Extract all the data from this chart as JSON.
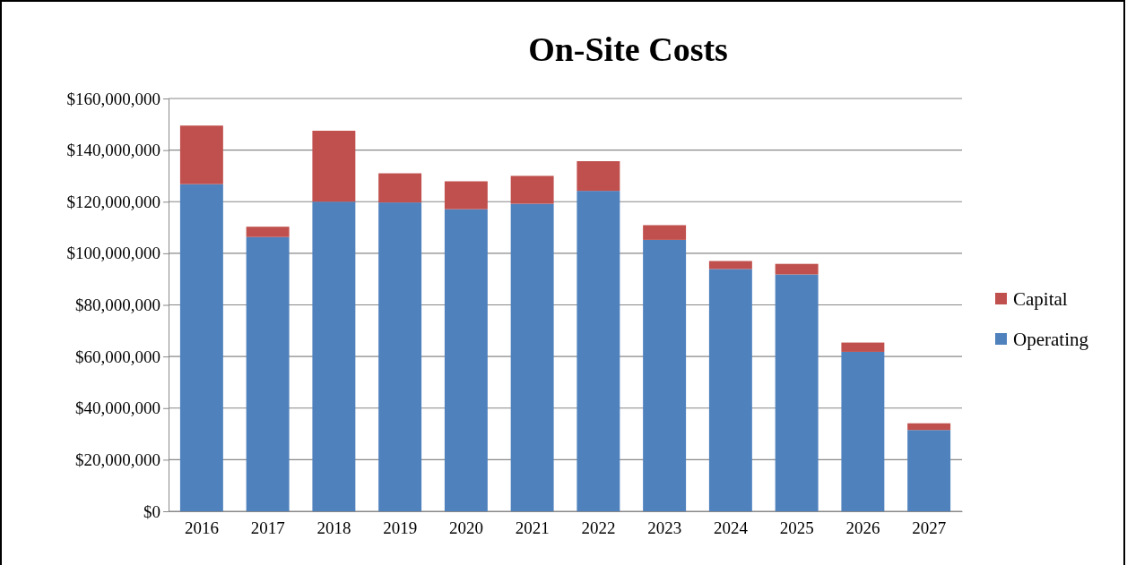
{
  "chart_data": {
    "type": "bar",
    "title": "On-Site Costs",
    "stacked": true,
    "grid": "y",
    "legend": "right",
    "categories": [
      "2016",
      "2017",
      "2018",
      "2019",
      "2020",
      "2021",
      "2022",
      "2023",
      "2024",
      "2025",
      "2026",
      "2027"
    ],
    "series": [
      {
        "name": "Operating",
        "color": "#4f81bd",
        "values": [
          126800000,
          106300000,
          120000000,
          119700000,
          117100000,
          119200000,
          124200000,
          105200000,
          93900000,
          91800000,
          61800000,
          31500000
        ]
      },
      {
        "name": "Capital",
        "color": "#c0504d",
        "values": [
          22700000,
          4000000,
          27500000,
          11300000,
          10800000,
          10800000,
          11500000,
          5700000,
          3100000,
          4100000,
          3600000,
          2600000
        ]
      }
    ],
    "ylim": [
      0,
      160000000
    ],
    "yticks": [
      {
        "value": 0,
        "label": "$0"
      },
      {
        "value": 20000000,
        "label": "$20,000,000"
      },
      {
        "value": 40000000,
        "label": "$40,000,000"
      },
      {
        "value": 60000000,
        "label": "$60,000,000"
      },
      {
        "value": 80000000,
        "label": "$80,000,000"
      },
      {
        "value": 100000000,
        "label": "$100,000,000"
      },
      {
        "value": 120000000,
        "label": "$120,000,000"
      },
      {
        "value": 140000000,
        "label": "$140,000,000"
      },
      {
        "value": 160000000,
        "label": "$160,000,000"
      }
    ]
  }
}
